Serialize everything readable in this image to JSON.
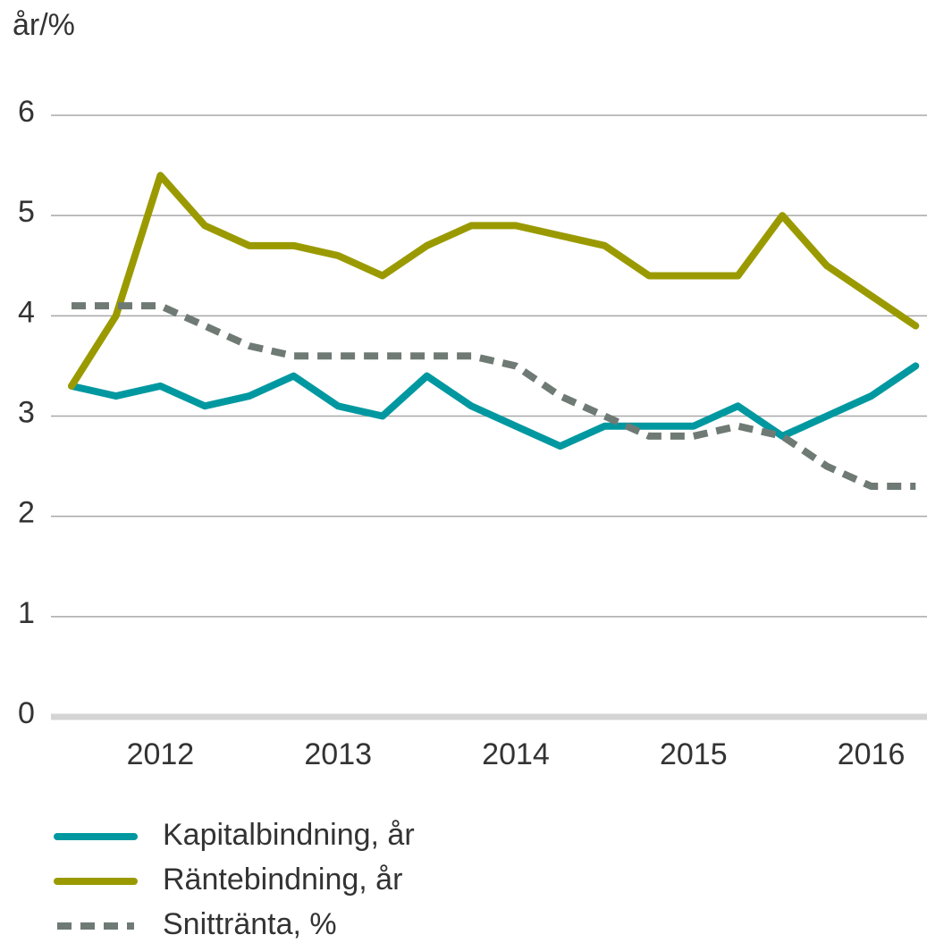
{
  "chart_data": {
    "type": "line",
    "y_label": "år/%",
    "categories": [
      null,
      null,
      "2012",
      null,
      null,
      null,
      "2013",
      null,
      null,
      null,
      "2014",
      null,
      null,
      null,
      "2015",
      null,
      null,
      null,
      "2016",
      null
    ],
    "series": [
      {
        "name": "Kapitalbindning, år",
        "color": "#0098a0",
        "dashed": false,
        "values": [
          3.3,
          3.2,
          3.3,
          3.1,
          3.2,
          3.4,
          3.1,
          3.0,
          3.4,
          3.1,
          2.9,
          2.7,
          2.9,
          2.9,
          2.9,
          3.1,
          2.8,
          3.0,
          3.2,
          3.5
        ]
      },
      {
        "name": "Räntebindning, år",
        "color": "#9a9a00",
        "dashed": false,
        "values": [
          3.3,
          4.0,
          5.4,
          4.9,
          4.7,
          4.7,
          4.6,
          4.4,
          4.7,
          4.9,
          4.9,
          4.8,
          4.7,
          4.4,
          4.4,
          4.4,
          5.0,
          4.5,
          4.2,
          3.9
        ]
      },
      {
        "name": "Snittränta, %",
        "color": "#6f7a75",
        "dashed": true,
        "values": [
          4.1,
          4.1,
          4.1,
          3.9,
          3.7,
          3.6,
          3.6,
          3.6,
          3.6,
          3.6,
          3.5,
          3.2,
          3.0,
          2.8,
          2.8,
          2.9,
          2.8,
          2.5,
          2.3,
          2.3
        ]
      }
    ],
    "ylim": [
      0,
      6
    ],
    "yticks": [
      0,
      1,
      2,
      3,
      4,
      5,
      6
    ],
    "grid": true
  }
}
